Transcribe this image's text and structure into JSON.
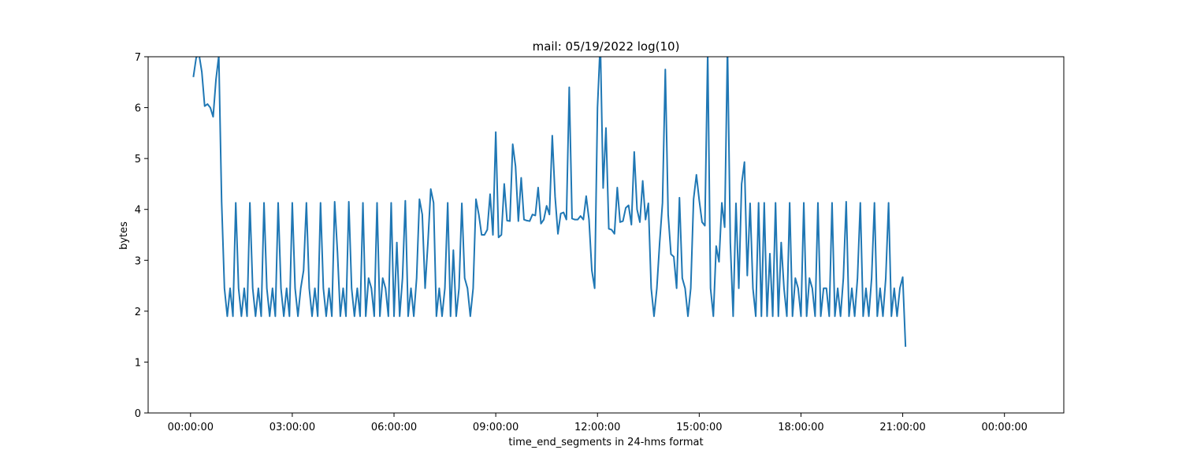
{
  "chart_data": {
    "type": "line",
    "title": "mail: 05/19/2022 log(10)",
    "xlabel": "time_end_segments in 24-hms format",
    "ylabel": "bytes",
    "ylim": [
      0,
      7
    ],
    "xlim_minutes": [
      -75,
      1545
    ],
    "x_unit": "minutes since 00:00:00",
    "grid": false,
    "legend": "none",
    "line_color": "#1f77b4",
    "x_ticks": [
      {
        "value": 0,
        "label": "00:00:00"
      },
      {
        "value": 180,
        "label": "03:00:00"
      },
      {
        "value": 360,
        "label": "06:00:00"
      },
      {
        "value": 540,
        "label": "09:00:00"
      },
      {
        "value": 720,
        "label": "12:00:00"
      },
      {
        "value": 900,
        "label": "15:00:00"
      },
      {
        "value": 1080,
        "label": "18:00:00"
      },
      {
        "value": 1260,
        "label": "21:00:00"
      },
      {
        "value": 1440,
        "label": "00:00:00"
      }
    ],
    "y_ticks": [
      0,
      1,
      2,
      3,
      4,
      5,
      6,
      7
    ],
    "series": [
      {
        "points": [
          [
            5,
            6.6
          ],
          [
            10,
            6.98
          ],
          [
            15,
            7.05
          ],
          [
            20,
            6.7
          ],
          [
            25,
            6.03
          ],
          [
            30,
            6.07
          ],
          [
            35,
            6.0
          ],
          [
            40,
            5.82
          ],
          [
            45,
            6.55
          ],
          [
            50,
            7.02
          ],
          [
            55,
            4.15
          ],
          [
            60,
            2.45
          ],
          [
            65,
            1.9
          ],
          [
            70,
            2.45
          ],
          [
            75,
            1.9
          ],
          [
            80,
            4.13
          ],
          [
            85,
            2.45
          ],
          [
            90,
            1.9
          ],
          [
            95,
            2.45
          ],
          [
            100,
            1.9
          ],
          [
            105,
            4.13
          ],
          [
            110,
            2.45
          ],
          [
            115,
            1.9
          ],
          [
            120,
            2.45
          ],
          [
            125,
            1.9
          ],
          [
            130,
            4.13
          ],
          [
            135,
            2.45
          ],
          [
            140,
            1.9
          ],
          [
            145,
            2.45
          ],
          [
            150,
            1.9
          ],
          [
            155,
            4.13
          ],
          [
            160,
            2.45
          ],
          [
            165,
            1.9
          ],
          [
            170,
            2.45
          ],
          [
            175,
            1.9
          ],
          [
            180,
            4.13
          ],
          [
            185,
            2.45
          ],
          [
            190,
            1.9
          ],
          [
            195,
            2.45
          ],
          [
            200,
            2.8
          ],
          [
            205,
            4.13
          ],
          [
            210,
            2.45
          ],
          [
            215,
            1.9
          ],
          [
            220,
            2.45
          ],
          [
            225,
            1.9
          ],
          [
            230,
            4.13
          ],
          [
            235,
            2.45
          ],
          [
            240,
            1.9
          ],
          [
            245,
            2.45
          ],
          [
            250,
            1.9
          ],
          [
            255,
            4.15
          ],
          [
            260,
            3.15
          ],
          [
            265,
            1.9
          ],
          [
            270,
            2.45
          ],
          [
            275,
            1.9
          ],
          [
            280,
            4.15
          ],
          [
            285,
            2.45
          ],
          [
            290,
            1.9
          ],
          [
            295,
            2.45
          ],
          [
            300,
            1.9
          ],
          [
            305,
            4.13
          ],
          [
            310,
            1.9
          ],
          [
            315,
            2.65
          ],
          [
            320,
            2.45
          ],
          [
            325,
            1.9
          ],
          [
            330,
            4.13
          ],
          [
            335,
            1.9
          ],
          [
            340,
            2.65
          ],
          [
            345,
            2.45
          ],
          [
            350,
            1.9
          ],
          [
            355,
            4.13
          ],
          [
            360,
            1.9
          ],
          [
            365,
            3.35
          ],
          [
            370,
            1.9
          ],
          [
            375,
            2.65
          ],
          [
            380,
            4.17
          ],
          [
            385,
            1.9
          ],
          [
            390,
            2.45
          ],
          [
            395,
            1.9
          ],
          [
            400,
            2.65
          ],
          [
            405,
            4.2
          ],
          [
            410,
            3.9
          ],
          [
            415,
            2.45
          ],
          [
            420,
            3.35
          ],
          [
            425,
            4.4
          ],
          [
            430,
            4.13
          ],
          [
            435,
            1.9
          ],
          [
            440,
            2.45
          ],
          [
            445,
            1.9
          ],
          [
            450,
            2.45
          ],
          [
            455,
            4.13
          ],
          [
            460,
            1.9
          ],
          [
            465,
            3.2
          ],
          [
            470,
            1.9
          ],
          [
            475,
            2.45
          ],
          [
            480,
            4.12
          ],
          [
            485,
            2.65
          ],
          [
            490,
            2.45
          ],
          [
            495,
            1.9
          ],
          [
            500,
            2.45
          ],
          [
            505,
            4.2
          ],
          [
            510,
            3.9
          ],
          [
            515,
            3.5
          ],
          [
            520,
            3.5
          ],
          [
            525,
            3.6
          ],
          [
            530,
            4.3
          ],
          [
            535,
            3.5
          ],
          [
            540,
            5.52
          ],
          [
            545,
            3.45
          ],
          [
            550,
            3.5
          ],
          [
            555,
            4.5
          ],
          [
            560,
            3.78
          ],
          [
            565,
            3.77
          ],
          [
            570,
            5.28
          ],
          [
            575,
            4.85
          ],
          [
            580,
            3.77
          ],
          [
            585,
            4.62
          ],
          [
            590,
            3.8
          ],
          [
            595,
            3.78
          ],
          [
            600,
            3.77
          ],
          [
            605,
            3.9
          ],
          [
            610,
            3.88
          ],
          [
            615,
            4.43
          ],
          [
            620,
            3.72
          ],
          [
            625,
            3.8
          ],
          [
            630,
            4.07
          ],
          [
            635,
            3.9
          ],
          [
            640,
            5.45
          ],
          [
            645,
            4.25
          ],
          [
            650,
            3.52
          ],
          [
            655,
            3.92
          ],
          [
            660,
            3.94
          ],
          [
            665,
            3.8
          ],
          [
            670,
            6.4
          ],
          [
            675,
            3.82
          ],
          [
            680,
            3.8
          ],
          [
            685,
            3.8
          ],
          [
            690,
            3.87
          ],
          [
            695,
            3.8
          ],
          [
            700,
            4.26
          ],
          [
            705,
            3.8
          ],
          [
            710,
            2.8
          ],
          [
            715,
            2.45
          ],
          [
            720,
            6.0
          ],
          [
            725,
            7.3
          ],
          [
            730,
            4.42
          ],
          [
            735,
            5.6
          ],
          [
            740,
            3.62
          ],
          [
            745,
            3.6
          ],
          [
            750,
            3.52
          ],
          [
            755,
            4.43
          ],
          [
            760,
            3.75
          ],
          [
            765,
            3.77
          ],
          [
            770,
            4.03
          ],
          [
            775,
            4.08
          ],
          [
            780,
            3.7
          ],
          [
            785,
            5.13
          ],
          [
            790,
            4.0
          ],
          [
            795,
            3.75
          ],
          [
            800,
            4.56
          ],
          [
            805,
            3.8
          ],
          [
            810,
            4.12
          ],
          [
            815,
            2.45
          ],
          [
            820,
            1.9
          ],
          [
            825,
            2.45
          ],
          [
            830,
            3.35
          ],
          [
            835,
            4.13
          ],
          [
            840,
            6.75
          ],
          [
            845,
            3.9
          ],
          [
            850,
            3.12
          ],
          [
            855,
            3.07
          ],
          [
            860,
            2.45
          ],
          [
            865,
            4.23
          ],
          [
            870,
            2.65
          ],
          [
            875,
            2.45
          ],
          [
            880,
            1.9
          ],
          [
            885,
            2.45
          ],
          [
            890,
            4.2
          ],
          [
            895,
            4.68
          ],
          [
            900,
            4.18
          ],
          [
            905,
            3.75
          ],
          [
            910,
            3.68
          ],
          [
            915,
            7.1
          ],
          [
            920,
            2.45
          ],
          [
            925,
            1.9
          ],
          [
            930,
            3.28
          ],
          [
            935,
            2.97
          ],
          [
            940,
            4.13
          ],
          [
            945,
            3.65
          ],
          [
            950,
            7.2
          ],
          [
            955,
            3.35
          ],
          [
            960,
            1.9
          ],
          [
            965,
            4.12
          ],
          [
            970,
            2.45
          ],
          [
            975,
            4.5
          ],
          [
            980,
            4.93
          ],
          [
            985,
            2.7
          ],
          [
            990,
            4.12
          ],
          [
            995,
            2.45
          ],
          [
            1000,
            1.9
          ],
          [
            1005,
            4.13
          ],
          [
            1010,
            1.9
          ],
          [
            1015,
            4.13
          ],
          [
            1020,
            1.9
          ],
          [
            1025,
            3.13
          ],
          [
            1030,
            1.9
          ],
          [
            1035,
            4.13
          ],
          [
            1040,
            1.9
          ],
          [
            1045,
            3.35
          ],
          [
            1050,
            2.45
          ],
          [
            1055,
            1.9
          ],
          [
            1060,
            4.13
          ],
          [
            1065,
            1.9
          ],
          [
            1070,
            2.65
          ],
          [
            1075,
            2.45
          ],
          [
            1080,
            1.9
          ],
          [
            1085,
            4.13
          ],
          [
            1090,
            1.9
          ],
          [
            1095,
            2.65
          ],
          [
            1100,
            2.45
          ],
          [
            1105,
            1.9
          ],
          [
            1110,
            4.13
          ],
          [
            1115,
            1.9
          ],
          [
            1120,
            2.45
          ],
          [
            1125,
            2.45
          ],
          [
            1130,
            1.9
          ],
          [
            1135,
            4.13
          ],
          [
            1140,
            1.9
          ],
          [
            1145,
            2.45
          ],
          [
            1150,
            1.9
          ],
          [
            1155,
            2.65
          ],
          [
            1160,
            4.15
          ],
          [
            1165,
            1.9
          ],
          [
            1170,
            2.45
          ],
          [
            1175,
            1.9
          ],
          [
            1180,
            2.65
          ],
          [
            1185,
            4.13
          ],
          [
            1190,
            1.9
          ],
          [
            1195,
            2.45
          ],
          [
            1200,
            1.9
          ],
          [
            1205,
            2.65
          ],
          [
            1210,
            4.13
          ],
          [
            1215,
            1.9
          ],
          [
            1220,
            2.45
          ],
          [
            1225,
            1.9
          ],
          [
            1230,
            2.65
          ],
          [
            1235,
            4.13
          ],
          [
            1240,
            1.9
          ],
          [
            1245,
            2.45
          ],
          [
            1250,
            1.9
          ],
          [
            1255,
            2.45
          ],
          [
            1260,
            2.67
          ],
          [
            1265,
            1.3
          ]
        ]
      }
    ]
  }
}
